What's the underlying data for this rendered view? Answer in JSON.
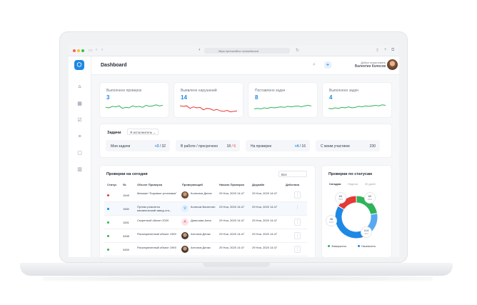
{
  "browser": {
    "url": "https://primeoffice.ru/dashboard"
  },
  "header": {
    "title": "Dashboard",
    "welcome": "Добро пожаловать",
    "user_name": "Валентин Колесов"
  },
  "stats": [
    {
      "label": "Выполнено проверок",
      "value": "3",
      "color": "#2fb35a",
      "trend": [
        0.45,
        0.5,
        0.35,
        0.4,
        0.3,
        0.55,
        0.45,
        0.5,
        0.3,
        0.4,
        0.35,
        0.45,
        0.25,
        0.35,
        0.3,
        0.2,
        0.3,
        0.25
      ]
    },
    {
      "label": "Выявлено нарушений",
      "value": "14",
      "color": "#e53935",
      "trend": [
        0.3,
        0.35,
        0.3,
        0.55,
        0.4,
        0.5,
        0.45,
        0.7,
        0.55,
        0.6,
        0.75,
        0.65,
        0.8,
        0.85,
        0.75,
        0.9,
        0.85,
        0.8
      ]
    },
    {
      "label": "Поставлено задач",
      "value": "8",
      "color": "#2fb35a",
      "trend": [
        0.6,
        0.55,
        0.6,
        0.5,
        0.55,
        0.45,
        0.5,
        0.45,
        0.4,
        0.45,
        0.35,
        0.4,
        0.35,
        0.3,
        0.4,
        0.3,
        0.25,
        0.3
      ]
    },
    {
      "label": "Выполнено задач",
      "value": "4",
      "color": "#2fb35a",
      "trend": [
        0.55,
        0.6,
        0.5,
        0.55,
        0.45,
        0.5,
        0.4,
        0.5,
        0.45,
        0.35,
        0.4,
        0.3,
        0.35,
        0.3,
        0.25,
        0.3,
        0.2,
        0.25
      ]
    }
  ],
  "tasks": {
    "title": "Задачи",
    "role_select": "Я исполнитель",
    "items": [
      {
        "label": "Мои задачи",
        "accent": "+3",
        "rest": " / 32"
      },
      {
        "label": "В работе / просрочено",
        "accent": "18",
        "rest": " / 6"
      },
      {
        "label": "На проверке",
        "accent": "+4",
        "rest": " / 16"
      },
      {
        "label": "С моим участием",
        "accent": "",
        "rest": "230"
      }
    ]
  },
  "checks_table": {
    "title": "Проверки на сегодня",
    "filter": "Все",
    "columns": [
      "Статус",
      "№",
      "Объект Проверки",
      "Проверяющий",
      "Начало Проверки",
      "Дедлайн",
      "Действия"
    ],
    "rows": [
      {
        "status_color": "#e53935",
        "num": "1549",
        "object": "Магазин \"Боровые установки\"",
        "inspector": "Колесник Денис",
        "start": "29 Ноя, 2020 14:47",
        "deadline": "29 Ноя, 2020 14:47",
        "avatar": "photo",
        "action": "⋮"
      },
      {
        "status_color": "#1e88e5",
        "num": "1550",
        "object": "Путево ремонтно механический завод ста...",
        "inspector": "Колесов Валентин",
        "start": "29 Ноя, 2020 14:47",
        "deadline": "29 Ноя, 2020 14:47",
        "avatar": "V",
        "action": "⋮"
      },
      {
        "status_color": "#2fb35a",
        "num": "1551",
        "object": "Секретный объект 2020",
        "inspector": "Данилова Анна",
        "start": "29 Ноя, 2020 14:47",
        "deadline": "29 Ноя, 2020 14:47",
        "avatar": "A",
        "action": "⋮"
      },
      {
        "status_color": "#2fb35a",
        "num": "3458",
        "object": "Рассекреченный объект 1993",
        "inspector": "Антонов Денис",
        "start": "29 Ноя, 2020 14:47",
        "deadline": "29 Ноя, 2020 14:47",
        "avatar": "photo",
        "action": "⋮"
      },
      {
        "status_color": "#2fb35a",
        "num": "3459",
        "object": "Рассекреченный объект 1993",
        "inspector": "Антонов Денис",
        "start": "29 Ноя, 2020 14:47",
        "deadline": "29 Ноя, 2020 14:47",
        "avatar": "photo",
        "action": "⋮"
      }
    ]
  },
  "status_donut": {
    "title": "Проверки по статусам",
    "tabs": [
      "Сегодня",
      "Неделя",
      "30 дней"
    ],
    "segments": [
      {
        "value": "63",
        "pct": "22%",
        "color": "#2fb35a"
      },
      {
        "value": "62",
        "pct": "22%",
        "color": "#5aa9f0"
      },
      {
        "value": "114",
        "pct": "40%",
        "color": "#1e88e5"
      },
      {
        "value": "46",
        "pct": "16%",
        "color": "#e53935"
      }
    ],
    "legend": [
      {
        "label": "Завершено",
        "color": "#2fb35a"
      },
      {
        "label": "Назначено",
        "color": "#1e88e5"
      }
    ]
  }
}
